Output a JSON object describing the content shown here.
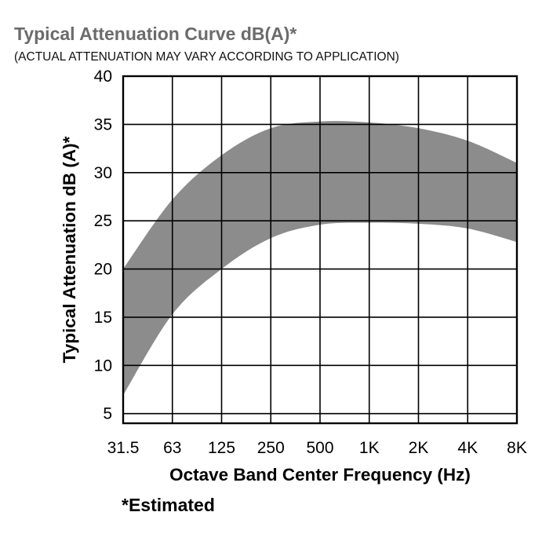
{
  "title": "Typical Attenuation Curve dB(A)*",
  "subtitle": "(ACTUAL ATTENUATION MAY VARY ACCORDING TO APPLICATION)",
  "footnote": "*Estimated",
  "chart_data": {
    "type": "area",
    "xlabel": "Octave Band Center Frequency (Hz)",
    "ylabel": "Typical Attenuation dB (A)*",
    "categories": [
      "31.5",
      "63",
      "125",
      "250",
      "500",
      "1K",
      "2K",
      "4K",
      "8K"
    ],
    "yticks": [
      40,
      35,
      30,
      25,
      20,
      15,
      10,
      5
    ],
    "ylim": [
      4,
      40
    ],
    "grid": true,
    "band_color": "#8c8c8c",
    "series": [
      {
        "role": "upper",
        "values": [
          20.0,
          27.2,
          31.8,
          34.6,
          35.3,
          35.2,
          34.6,
          33.3,
          31.0
        ]
      },
      {
        "role": "lower",
        "values": [
          6.9,
          15.3,
          20.0,
          23.2,
          24.6,
          24.8,
          24.7,
          24.2,
          22.8
        ]
      }
    ]
  }
}
